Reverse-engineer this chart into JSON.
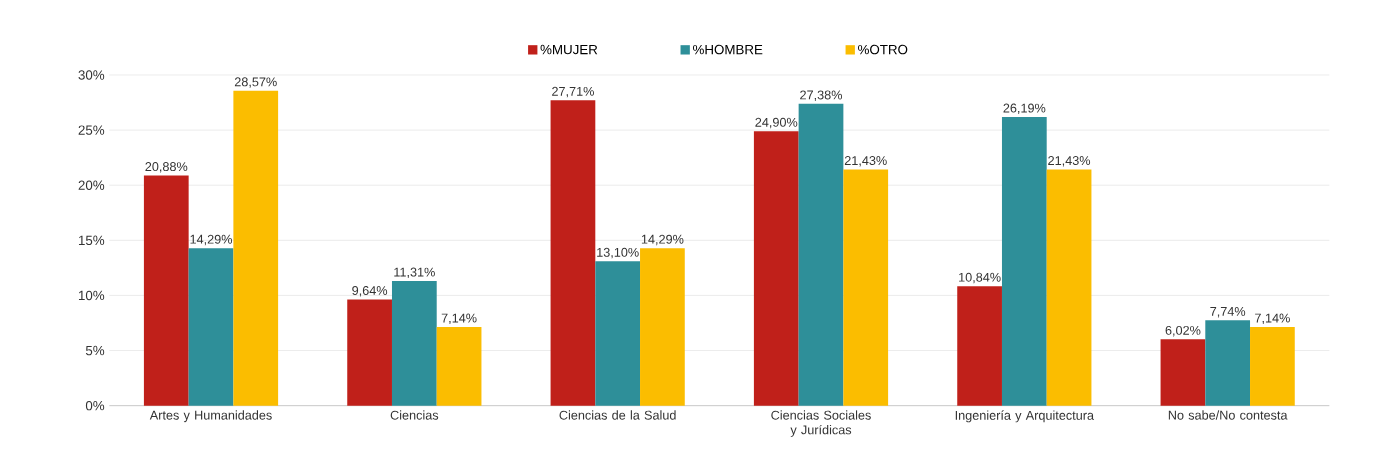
{
  "chart_data": {
    "type": "bar",
    "categories": [
      "Artes y Humanidades",
      "Ciencias",
      "Ciencias de la Salud",
      "Ciencias Sociales y Jurídicas",
      "Ingeniería y Arquitectura",
      "No sabe/No contesta"
    ],
    "series": [
      {
        "name": "%MUJER",
        "color": "#c0201a",
        "values": [
          20.88,
          9.64,
          27.71,
          24.9,
          10.84,
          6.02
        ],
        "value_labels": [
          "20,88%",
          "9,64%",
          "27,71%",
          "24,90%",
          "10,84%",
          "6,02%"
        ]
      },
      {
        "name": "%HOMBRE",
        "color": "#2e8f99",
        "values": [
          14.29,
          11.31,
          13.1,
          27.38,
          26.19,
          7.74
        ],
        "value_labels": [
          "14,29%",
          "11,31%",
          "13,10%",
          "27,38%",
          "26,19%",
          "7,74%"
        ]
      },
      {
        "name": "%OTRO",
        "color": "#fbbd00",
        "values": [
          28.57,
          7.14,
          14.29,
          21.43,
          21.43,
          7.14
        ],
        "value_labels": [
          "28,57%",
          "7,14%",
          "14,29%",
          "21,43%",
          "21,43%",
          "7,14%"
        ]
      }
    ],
    "ylim": [
      0,
      30
    ],
    "yticks": [
      {
        "value": 0,
        "label": "0%"
      },
      {
        "value": 5,
        "label": "5%"
      },
      {
        "value": 10,
        "label": "10%"
      },
      {
        "value": 15,
        "label": "15%"
      },
      {
        "value": 20,
        "label": "20%"
      },
      {
        "value": 25,
        "label": "25%"
      },
      {
        "value": 30,
        "label": "30%"
      }
    ],
    "grid": "y",
    "legend": "top"
  }
}
